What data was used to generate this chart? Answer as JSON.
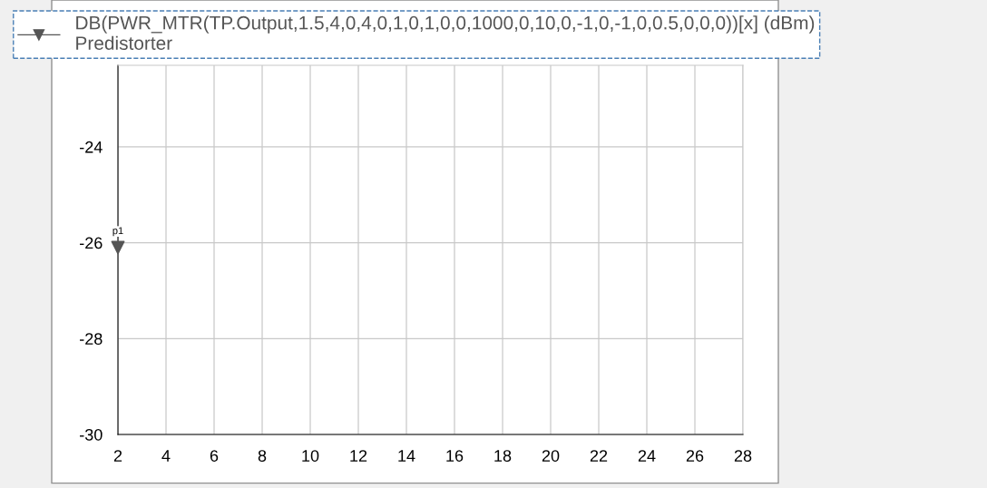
{
  "chart_data": {
    "type": "scatter",
    "x": [
      2
    ],
    "series": [
      {
        "name": "DB(PWR_MTR(TP.Output,1.5,4,0,4,0,1,0,1,0,0,1000,0,10,0,-1,0,-1,0,0.5,0,0,0))[x] (dBm)\nPredistorter",
        "color": "#555555",
        "values": [
          -26.1
        ]
      }
    ],
    "xlim": [
      2,
      28
    ],
    "xticks": [
      2,
      4,
      6,
      8,
      10,
      12,
      14,
      16,
      18,
      20,
      22,
      24,
      26,
      28
    ],
    "ylim": [
      -30,
      -22.3
    ],
    "yticks": [
      -30,
      -28,
      -26,
      -24
    ],
    "annotations": [
      {
        "text": "p1",
        "x": 2,
        "y": -26.1
      }
    ],
    "grid": true,
    "legend": "top",
    "marker": "triangle"
  }
}
